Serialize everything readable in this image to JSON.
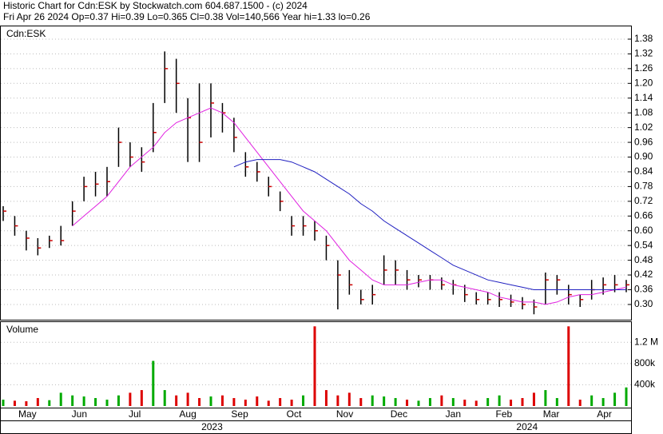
{
  "chart_data": {
    "type": "ohlc",
    "title": "Historic Chart for Cdn:ESK by Stockwatch.com 604.687.1500 - (c) 2024",
    "subtitle": "Fri Apr 26 2024  Op=0.37  Hi=0.39  Lo=0.365  Cl=0.38  Vol=140,566  Year hi=1.33  lo=0.26",
    "symbol_label": "Cdn:ESK",
    "volume_label": "Volume",
    "xlim": [
      0,
      54
    ],
    "xticks": [
      {
        "value": 2.1,
        "label": "May"
      },
      {
        "value": 6.6,
        "label": "Jun"
      },
      {
        "value": 11.4,
        "label": "Jul"
      },
      {
        "value": 16.0,
        "label": "Aug"
      },
      {
        "value": 20.5,
        "label": "Sep"
      },
      {
        "value": 25.2,
        "label": "Oct"
      },
      {
        "value": 29.6,
        "label": "Nov"
      },
      {
        "value": 34.3,
        "label": "Dec"
      },
      {
        "value": 39.0,
        "label": "Jan"
      },
      {
        "value": 43.4,
        "label": "Feb"
      },
      {
        "value": 47.5,
        "label": "Mar"
      },
      {
        "value": 52.1,
        "label": "Apr"
      }
    ],
    "year_ticks": [
      {
        "value": 18.1,
        "label": "2023"
      },
      {
        "value": 45.4,
        "label": "2024"
      }
    ],
    "ylim": [
      0.238,
      1.432
    ],
    "yticks": [
      {
        "value": 0.3,
        "label": "0.30"
      },
      0.36,
      0.42,
      0.48,
      0.54,
      {
        "value": 0.6,
        "label": "0.60"
      },
      0.66,
      0.72,
      0.78,
      0.84,
      {
        "value": 0.9,
        "label": "0.90"
      },
      0.96,
      1.02,
      1.08,
      1.14,
      {
        "value": 1.2,
        "label": "1.20"
      },
      1.26,
      1.32,
      1.38
    ],
    "grid": true,
    "bar_color": "#000000",
    "close_color": "#cc0000",
    "high": [
      0.7,
      0.66,
      0.6,
      0.57,
      0.58,
      0.62,
      0.72,
      0.82,
      0.84,
      0.86,
      1.02,
      0.96,
      0.94,
      1.12,
      1.33,
      1.3,
      1.14,
      1.2,
      1.2,
      1.12,
      1.06,
      0.92,
      0.88,
      0.82,
      0.76,
      0.66,
      0.66,
      0.64,
      0.58,
      0.48,
      0.44,
      0.36,
      0.38,
      0.5,
      0.48,
      0.44,
      0.42,
      0.42,
      0.41,
      0.4,
      0.38,
      0.35,
      0.35,
      0.35,
      0.34,
      0.33,
      0.32,
      0.43,
      0.42,
      0.38,
      0.34,
      0.4,
      0.41,
      0.42,
      0.4
    ],
    "low": [
      0.64,
      0.58,
      0.52,
      0.5,
      0.53,
      0.54,
      0.62,
      0.72,
      0.74,
      0.74,
      0.86,
      0.86,
      0.84,
      0.92,
      1.12,
      1.08,
      0.88,
      0.88,
      0.98,
      1.0,
      0.92,
      0.82,
      0.8,
      0.74,
      0.68,
      0.58,
      0.58,
      0.56,
      0.48,
      0.28,
      0.34,
      0.3,
      0.3,
      0.38,
      0.38,
      0.36,
      0.37,
      0.36,
      0.36,
      0.34,
      0.31,
      0.3,
      0.3,
      0.29,
      0.29,
      0.28,
      0.26,
      0.3,
      0.34,
      0.3,
      0.29,
      0.32,
      0.34,
      0.35,
      0.35
    ],
    "close": [
      0.68,
      0.62,
      0.57,
      0.53,
      0.56,
      0.56,
      0.68,
      0.78,
      0.79,
      0.8,
      0.96,
      0.9,
      0.88,
      1.0,
      1.26,
      1.2,
      1.06,
      0.96,
      1.12,
      1.08,
      0.98,
      0.86,
      0.84,
      0.78,
      0.72,
      0.62,
      0.62,
      0.6,
      0.54,
      0.42,
      0.38,
      0.32,
      0.34,
      0.44,
      0.44,
      0.4,
      0.4,
      0.4,
      0.38,
      0.38,
      0.34,
      0.32,
      0.32,
      0.32,
      0.31,
      0.3,
      0.29,
      0.4,
      0.4,
      0.34,
      0.32,
      0.36,
      0.38,
      0.38,
      0.38
    ],
    "series": [
      {
        "color": "#e020e0",
        "values": [
          null,
          null,
          null,
          null,
          null,
          null,
          0.62,
          0.66,
          0.7,
          0.74,
          0.8,
          0.86,
          0.9,
          0.94,
          1.0,
          1.04,
          1.06,
          1.08,
          1.1,
          1.08,
          1.04,
          0.98,
          0.92,
          0.86,
          0.8,
          0.74,
          0.68,
          0.64,
          0.6,
          0.54,
          0.48,
          0.44,
          0.4,
          0.38,
          0.38,
          0.38,
          0.39,
          0.4,
          0.4,
          0.38,
          0.37,
          0.36,
          0.35,
          0.33,
          0.32,
          0.31,
          0.31,
          0.3,
          0.31,
          0.33,
          0.34,
          0.34,
          0.35,
          0.36,
          0.37
        ]
      },
      {
        "color": "#2020c0",
        "values": [
          null,
          null,
          null,
          null,
          null,
          null,
          null,
          null,
          null,
          null,
          null,
          null,
          null,
          null,
          null,
          null,
          null,
          null,
          null,
          null,
          0.86,
          0.88,
          0.89,
          0.89,
          0.89,
          0.88,
          0.86,
          0.84,
          0.81,
          0.78,
          0.75,
          0.71,
          0.68,
          0.64,
          0.61,
          0.58,
          0.55,
          0.52,
          0.49,
          0.46,
          0.44,
          0.42,
          0.4,
          0.39,
          0.38,
          0.37,
          0.36,
          0.36,
          0.36,
          0.36,
          0.36,
          0.36,
          0.36,
          0.36,
          0.36
        ]
      }
    ],
    "volume": [
      120000,
      100000,
      90000,
      150000,
      110000,
      250000,
      200000,
      180000,
      150000,
      120000,
      200000,
      250000,
      300000,
      850000,
      300000,
      200000,
      250000,
      150000,
      180000,
      200000,
      150000,
      120000,
      180000,
      100000,
      150000,
      120000,
      200000,
      1500000,
      300000,
      200000,
      250000,
      150000,
      200000,
      180000,
      150000,
      120000,
      100000,
      150000,
      200000,
      150000,
      120000,
      100000,
      150000,
      200000,
      120000,
      150000,
      250000,
      300000,
      150000,
      1500000,
      120000,
      200000,
      150000,
      250000,
      350000
    ],
    "volume_ylim": [
      0,
      1580000
    ],
    "volume_yticks": [
      {
        "value": 400000,
        "label": "400k"
      },
      {
        "value": 800000,
        "label": "800k"
      },
      {
        "value": 1200000,
        "label": "1.2 M"
      }
    ],
    "volume_up_color": "#00aa00",
    "volume_down_color": "#dd0000"
  }
}
